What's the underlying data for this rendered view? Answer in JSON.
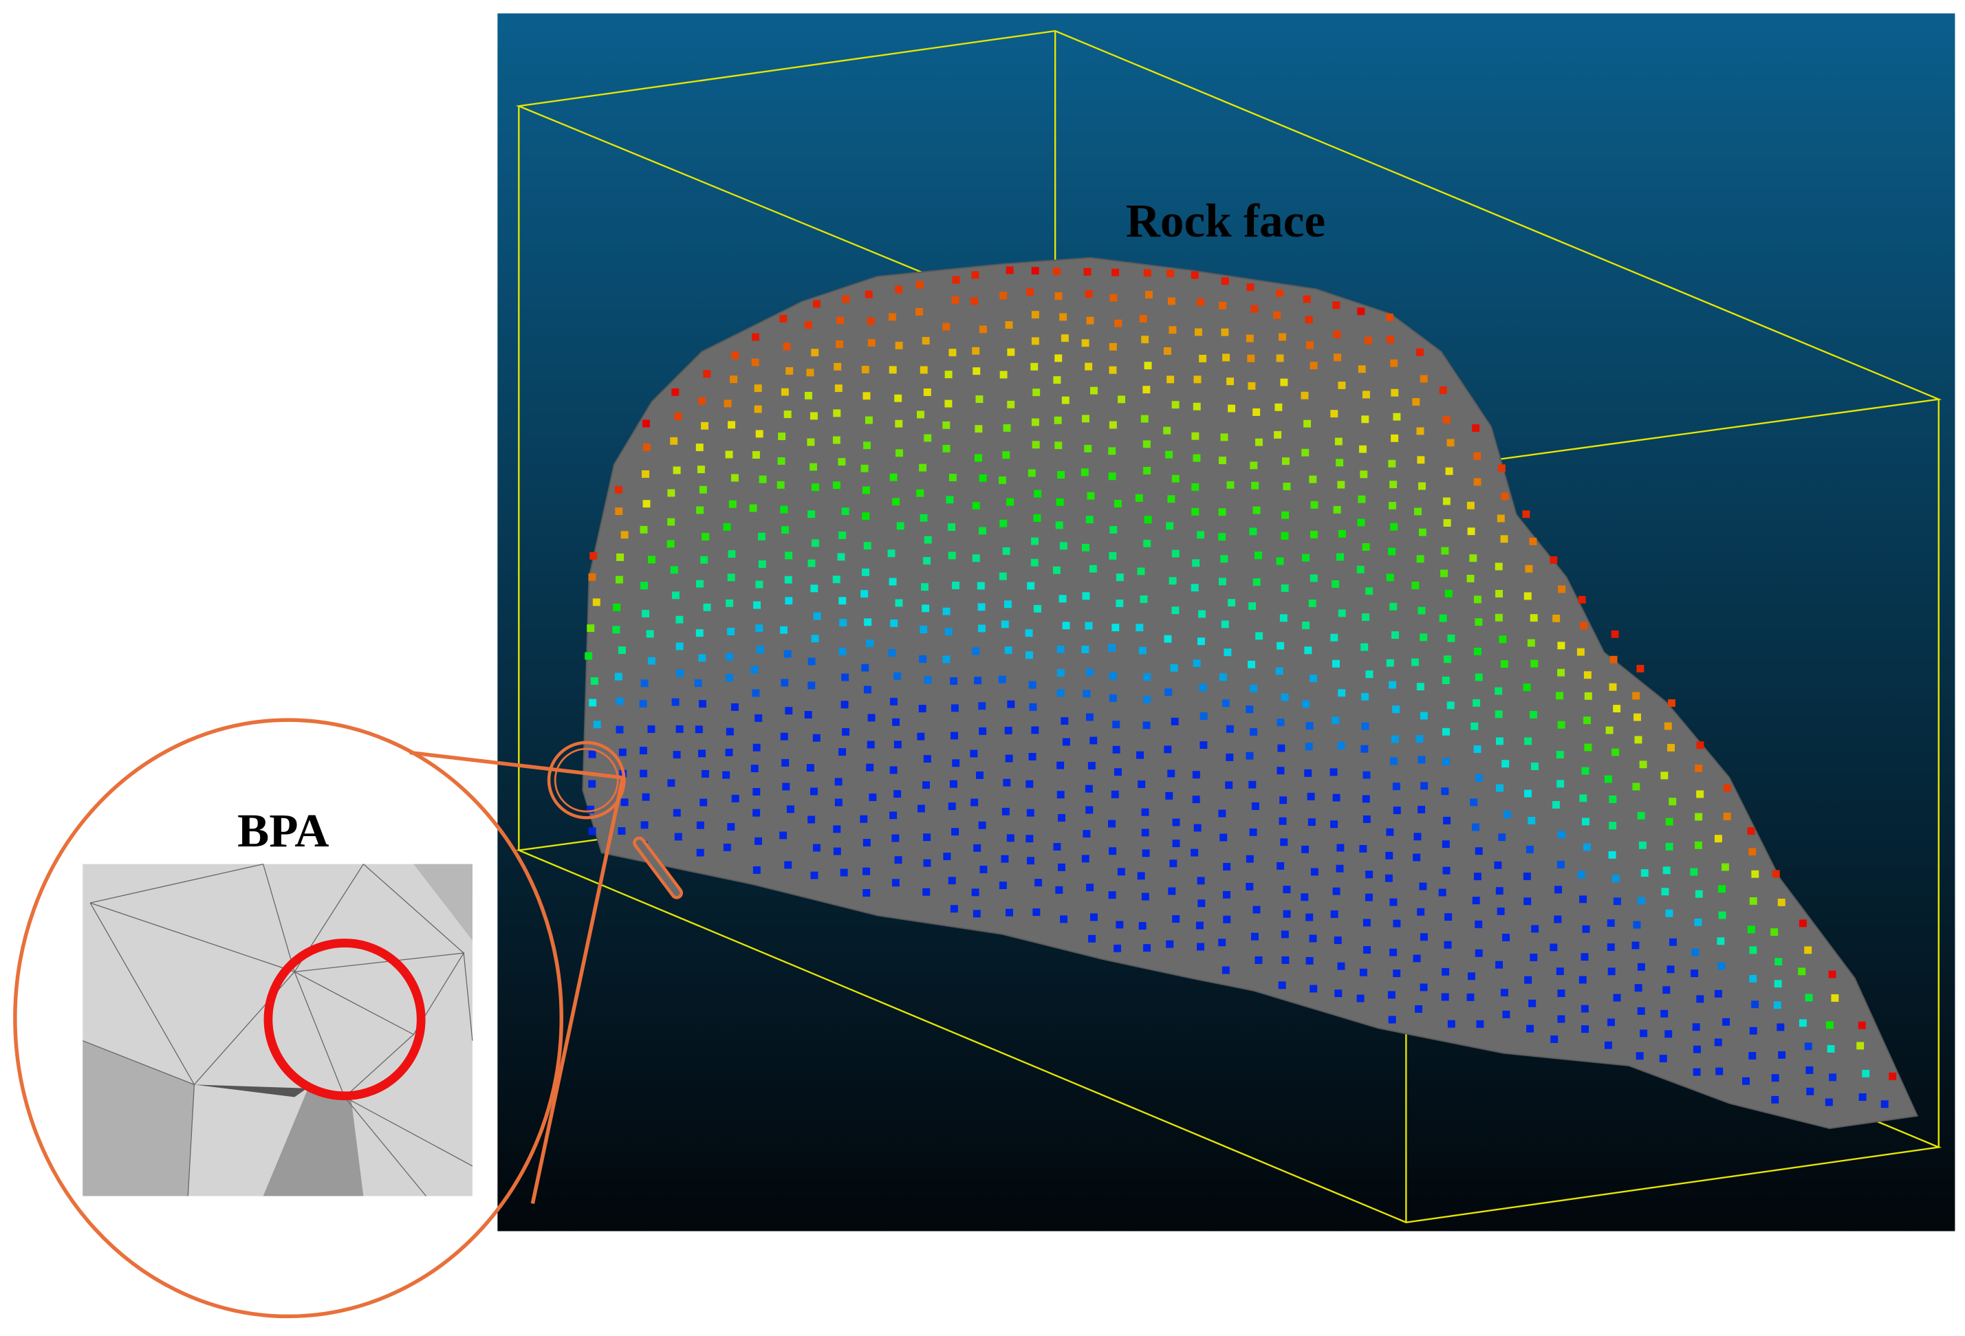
{
  "figure": {
    "main_label": "Rock face",
    "inset_label": "BPA"
  }
}
